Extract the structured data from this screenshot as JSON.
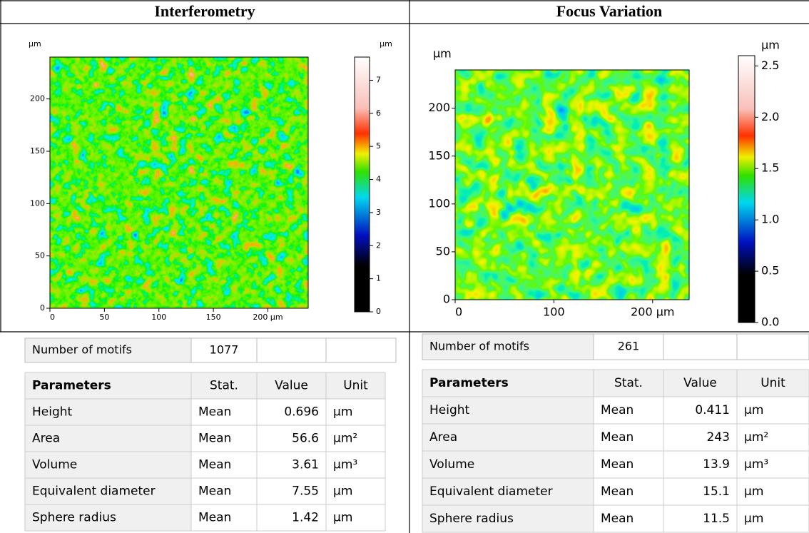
{
  "panels": [
    {
      "title": "Interferometry",
      "map": {
        "unit": "µm",
        "xlim": [
          0,
          237
        ],
        "xticks": [
          0,
          50,
          100,
          150,
          {
            "value": 200,
            "label": "200 µm"
          }
        ],
        "ylim": [
          0,
          240
        ],
        "yticks": [
          0,
          50,
          100,
          150,
          200
        ],
        "colorbar": {
          "unit": "µm",
          "lim": [
            0,
            7.7
          ],
          "ticks": [
            0,
            1,
            2,
            3,
            4,
            5,
            6,
            7
          ]
        }
      },
      "motifs": {
        "label": "Number of motifs",
        "value": 1077
      },
      "table": {
        "header": [
          "Parameters",
          "Stat.",
          "Value",
          "Unit"
        ],
        "rows": [
          [
            "Height",
            "Mean",
            0.696,
            "µm"
          ],
          [
            "Area",
            "Mean",
            56.6,
            "µm²"
          ],
          [
            "Volume",
            "Mean",
            3.61,
            "µm³"
          ],
          [
            "Equivalent diameter",
            "Mean",
            7.55,
            "µm"
          ],
          [
            "Sphere radius",
            "Mean",
            1.42,
            "µm"
          ]
        ]
      }
    },
    {
      "title": "Focus Variation",
      "map": {
        "unit": "µm",
        "xlim": [
          0,
          237
        ],
        "xticks": [
          0,
          100,
          {
            "value": 200,
            "label": "200 µm"
          }
        ],
        "ylim": [
          0,
          240
        ],
        "yticks": [
          0,
          50,
          100,
          150,
          200
        ],
        "colorbar": {
          "unit": "µm",
          "lim": [
            0,
            2.6
          ],
          "ticks": [
            {
              "value": 0,
              "label": "0.0"
            },
            0.5,
            {
              "value": 1,
              "label": "1.0"
            },
            1.5,
            {
              "value": 2,
              "label": "2.0"
            },
            2.5
          ]
        }
      },
      "motifs": {
        "label": "Number of motifs",
        "value": 261
      },
      "table": {
        "header": [
          "Parameters",
          "Stat.",
          "Value",
          "Unit"
        ],
        "rows": [
          [
            "Height",
            "Mean",
            0.411,
            "µm"
          ],
          [
            "Area",
            "Mean",
            243,
            "µm²"
          ],
          [
            "Volume",
            "Mean",
            13.9,
            "µm³"
          ],
          [
            "Equivalent diameter",
            "Mean",
            15.1,
            "µm"
          ],
          [
            "Sphere radius",
            "Mean",
            11.5,
            "µm"
          ]
        ]
      }
    }
  ]
}
